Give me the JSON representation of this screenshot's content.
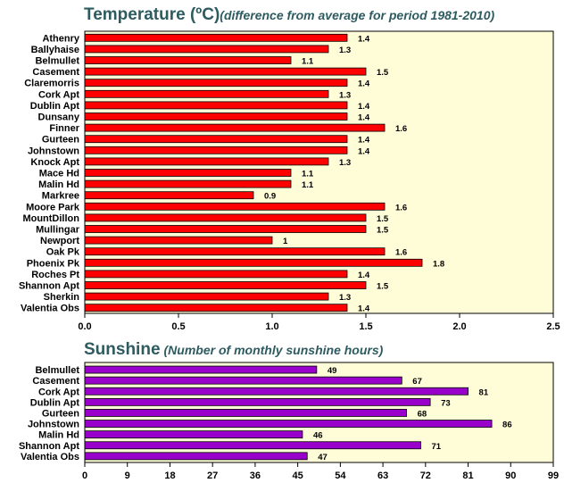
{
  "chart_data": [
    {
      "type": "bar",
      "orientation": "horizontal",
      "title": "Temperature (ºC)",
      "subtitle": "(difference from average for period 1981-2010)",
      "categories": [
        "Athenry",
        "Ballyhaise",
        "Belmullet",
        "Casement",
        "Claremorris",
        "Cork Apt",
        "Dublin Apt",
        "Dunsany",
        "Finner",
        "Gurteen",
        "Johnstown",
        "Knock Apt",
        "Mace Hd",
        "Malin Hd",
        "Markree",
        "Moore Park",
        "MountDillon",
        "Mullingar",
        "Newport",
        "Oak Pk",
        "Phoenix Pk",
        "Roches Pt",
        "Shannon Apt",
        "Sherkin",
        "Valentia Obs"
      ],
      "values": [
        1.4,
        1.3,
        1.1,
        1.5,
        1.4,
        1.3,
        1.4,
        1.4,
        1.6,
        1.4,
        1.4,
        1.3,
        1.1,
        1.1,
        0.9,
        1.6,
        1.5,
        1.5,
        1,
        1.6,
        1.8,
        1.4,
        1.5,
        1.3,
        1.4
      ],
      "value_labels": [
        "1.4",
        "1.3",
        "1.1",
        "1.5",
        "1.4",
        "1.3",
        "1.4",
        "1.4",
        "1.6",
        "1.4",
        "1.4",
        "1.3",
        "1.1",
        "1.1",
        "0.9",
        "1.6",
        "1.5",
        "1.5",
        "1",
        "1.6",
        "1.8",
        "1.4",
        "1.5",
        "1.3",
        "1.4"
      ],
      "xlim": [
        0,
        2.5
      ],
      "ticks": [
        "0.0",
        "0.5",
        "1.0",
        "1.5",
        "2.0",
        "2.5"
      ],
      "bar_color": "#ff0000",
      "background": "#fffdd8",
      "grid": false
    },
    {
      "type": "bar",
      "orientation": "horizontal",
      "title": "Sunshine",
      "subtitle": "(Number of monthly sunshine hours)",
      "categories": [
        "Belmullet",
        "Casement",
        "Cork Apt",
        "Dublin Apt",
        "Gurteen",
        "Johnstown",
        "Malin Hd",
        "Shannon Apt",
        "Valentia Obs"
      ],
      "values": [
        49,
        67,
        81,
        73,
        68,
        86,
        46,
        71,
        47
      ],
      "value_labels": [
        "49",
        "67",
        "81",
        "73",
        "68",
        "86",
        "46",
        "71",
        "47"
      ],
      "xlim": [
        0,
        99
      ],
      "ticks": [
        "0",
        "9",
        "18",
        "27",
        "36",
        "45",
        "54",
        "63",
        "72",
        "81",
        "90",
        "99"
      ],
      "bar_color": "#9900cc",
      "background": "#fffdd8",
      "grid": false
    }
  ]
}
